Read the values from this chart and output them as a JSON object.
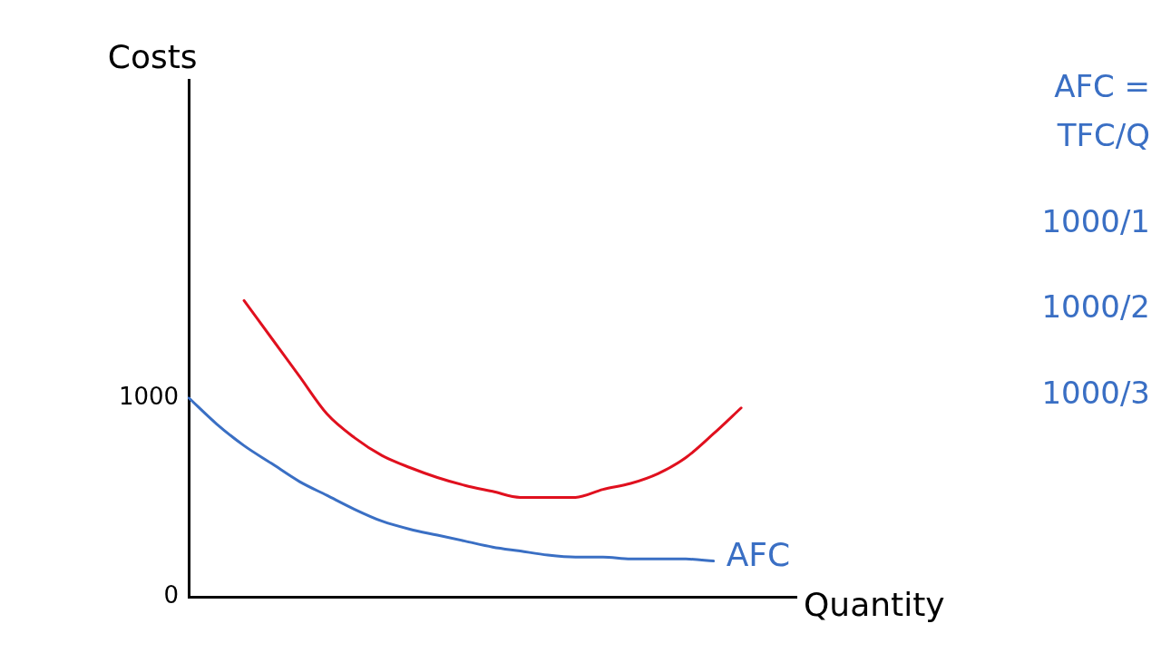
{
  "chart_data": {
    "type": "line",
    "xlabel": "Quantity",
    "ylabel": "Costs",
    "categories": [
      null,
      null,
      null,
      null,
      null,
      null,
      null,
      null,
      null,
      null,
      null,
      null,
      null,
      null,
      null,
      null,
      null,
      null,
      null,
      null,
      null,
      null,
      null
    ],
    "series": [
      {
        "name": "AFC",
        "color": "#3a6fc4",
        "values": [
          1000,
          870,
          760,
          670,
          580,
          510,
          440,
          380,
          340,
          310,
          280,
          250,
          230,
          210,
          200,
          200,
          190,
          190,
          190,
          180,
          null,
          null,
          null
        ]
      },
      {
        "color": "#e0101e",
        "values": [
          null,
          null,
          1490,
          1300,
          1110,
          920,
          800,
          710,
          650,
          600,
          560,
          530,
          500,
          500,
          500,
          540,
          570,
          620,
          700,
          820,
          950,
          null,
          null
        ]
      }
    ],
    "ylim": [
      0,
      2600
    ],
    "yticks": [
      0,
      1000
    ],
    "tick_labels": "y",
    "grid": false,
    "legend": false,
    "marker": "none",
    "line_style": "solid",
    "annotations": [
      "AFC = TFC/Q",
      "1000/1",
      "1000/2",
      "1000/3"
    ]
  }
}
